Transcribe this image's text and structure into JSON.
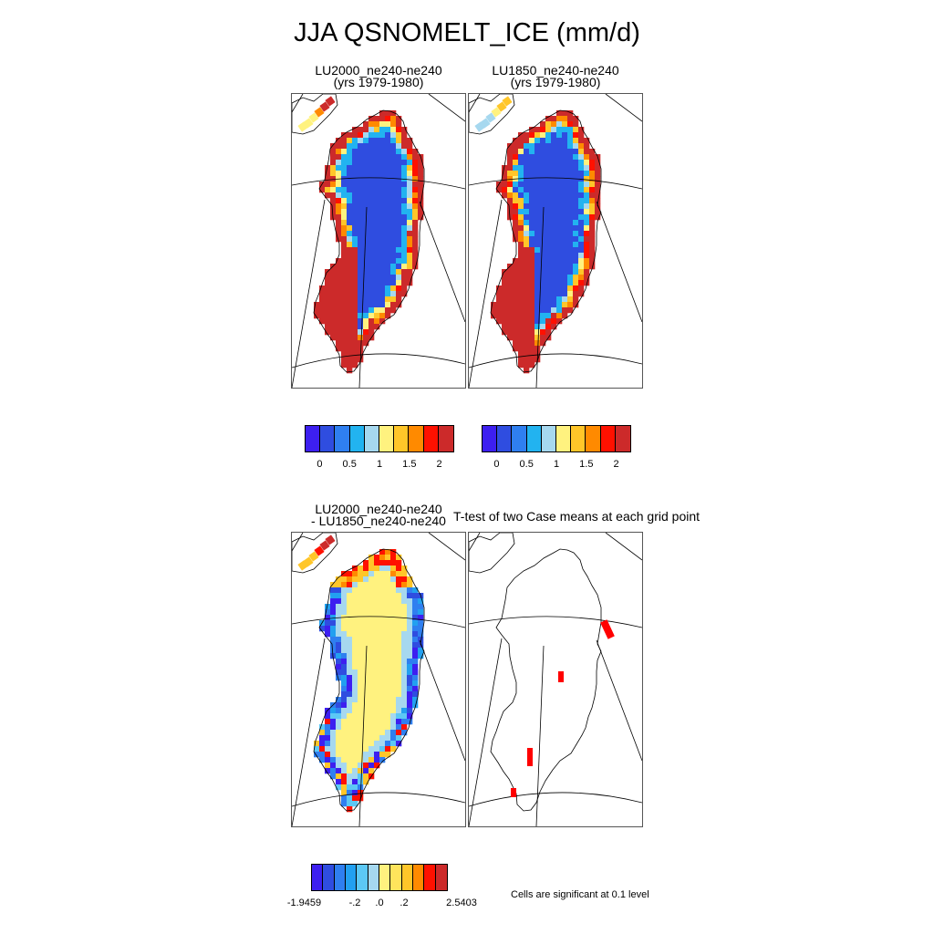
{
  "title": "JJA QSNOMELT_ICE (mm/d)",
  "panels": {
    "p1": {
      "line1": "LU2000_ne240-ne240",
      "line2": "(yrs 1979-1980)"
    },
    "p2": {
      "line1": "LU1850_ne240-ne240",
      "line2": "(yrs 1979-1980)"
    },
    "p3": {
      "line1": "LU2000_ne240-ne240",
      "line2": "- LU1850_ne240-ne240"
    },
    "p4": {
      "line1": "T-test of two Case means at each grid point"
    }
  },
  "colorbars": {
    "abs": {
      "colors": [
        "#3d1ff0",
        "#2f4de0",
        "#2f7ff0",
        "#22b3f0",
        "#a6d8ef",
        "#fff27f",
        "#ffc629",
        "#ff8a00",
        "#ff1100",
        "#cc2a2a"
      ],
      "ticks": [
        "0",
        "0.5",
        "1",
        "1.5",
        "2"
      ]
    },
    "diff": {
      "colors": [
        "#3d1ff0",
        "#2f4de0",
        "#2f7ff0",
        "#22a0f0",
        "#5cc8f5",
        "#a6d8ef",
        "#fff27f",
        "#ffe45c",
        "#ffc629",
        "#ff8a00",
        "#ff1100",
        "#cc2a2a"
      ],
      "ticks": [
        "-1.9459",
        "-.2",
        ".0",
        ".2",
        "2.5403"
      ]
    }
  },
  "significance_note": "Cells are significant at 0.1 level",
  "chart_data": [
    {
      "type": "heatmap",
      "title": "LU2000_ne240-ne240",
      "subtitle": "(yrs 1979-1980)",
      "units": "mm/d",
      "region": "Greenland",
      "colorbar_ticks": [
        0,
        0.5,
        1,
        1.5,
        2
      ],
      "pattern": "interior ~0 (blue), margins >2 (red)"
    },
    {
      "type": "heatmap",
      "title": "LU1850_ne240-ne240",
      "subtitle": "(yrs 1979-1980)",
      "units": "mm/d",
      "region": "Greenland",
      "colorbar_ticks": [
        0,
        0.5,
        1,
        1.5,
        2
      ],
      "pattern": "interior ~0 (blue), margins >2 (red)"
    },
    {
      "type": "heatmap",
      "title": "LU2000_ne240-ne240",
      "subtitle": "- LU1850_ne240-ne240",
      "units": "mm/d",
      "region": "Greenland",
      "colorbar_ticks": [
        -1.9459,
        -0.2,
        0.0,
        0.2,
        2.5403
      ],
      "range": [
        -1.9459,
        2.5403
      ]
    },
    {
      "type": "heatmap",
      "title": "T-test of two Case means at each grid point",
      "region": "Greenland",
      "significant_cells_count": 5,
      "note": "Cells are significant at 0.1 level"
    }
  ]
}
